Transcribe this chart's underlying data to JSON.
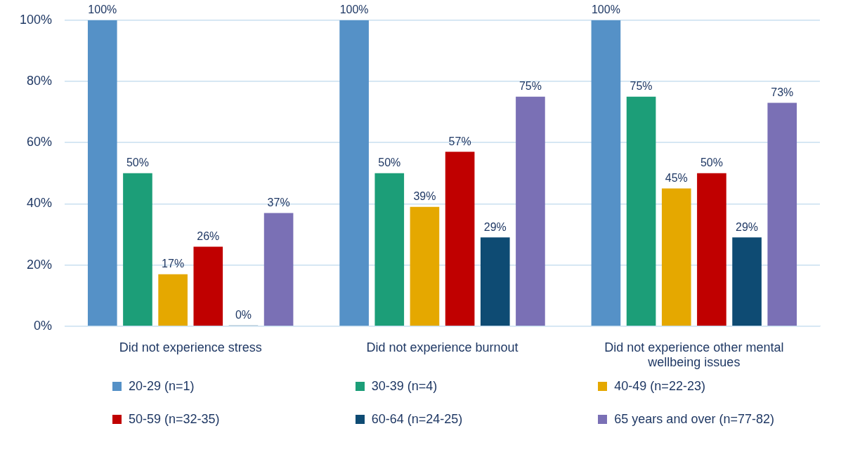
{
  "chart_data": {
    "type": "bar",
    "categories": [
      "Did not experience stress",
      "Did not experience burnout",
      "Did not experience other mental wellbeing issues"
    ],
    "series": [
      {
        "name": "20-29 (n=1)",
        "color": "#5591c7",
        "values": [
          100,
          100,
          100
        ],
        "value_labels": [
          "100%",
          "100%",
          "100%"
        ]
      },
      {
        "name": "30-39 (n=4)",
        "color": "#1c9e78",
        "values": [
          50,
          50,
          75
        ],
        "value_labels": [
          "50%",
          "50%",
          "75%"
        ]
      },
      {
        "name": "40-49 (n=22-23)",
        "color": "#e5a800",
        "values": [
          17,
          39,
          45
        ],
        "value_labels": [
          "17%",
          "39%",
          "45%"
        ]
      },
      {
        "name": "50-59 (n=32-35)",
        "color": "#c00000",
        "values": [
          26,
          57,
          50
        ],
        "value_labels": [
          "26%",
          "57%",
          "50%"
        ]
      },
      {
        "name": "60-64 (n=24-25)",
        "color": "#0e4b73",
        "values": [
          0,
          29,
          29
        ],
        "value_labels": [
          "0%",
          "29%",
          "29%"
        ]
      },
      {
        "name": "65 years and over (n=77-82)",
        "color": "#7a70b5",
        "values": [
          37,
          75,
          73
        ],
        "value_labels": [
          "37%",
          "75%",
          "73%"
        ]
      }
    ],
    "ylim": [
      0,
      100
    ],
    "yticks": [
      {
        "value": 0,
        "label": "0%"
      },
      {
        "value": 20,
        "label": "20%"
      },
      {
        "value": 40,
        "label": "40%"
      },
      {
        "value": 60,
        "label": "60%"
      },
      {
        "value": 80,
        "label": "80%"
      },
      {
        "value": 100,
        "label": "100%"
      }
    ],
    "grid": "y",
    "legend": "bottom"
  }
}
